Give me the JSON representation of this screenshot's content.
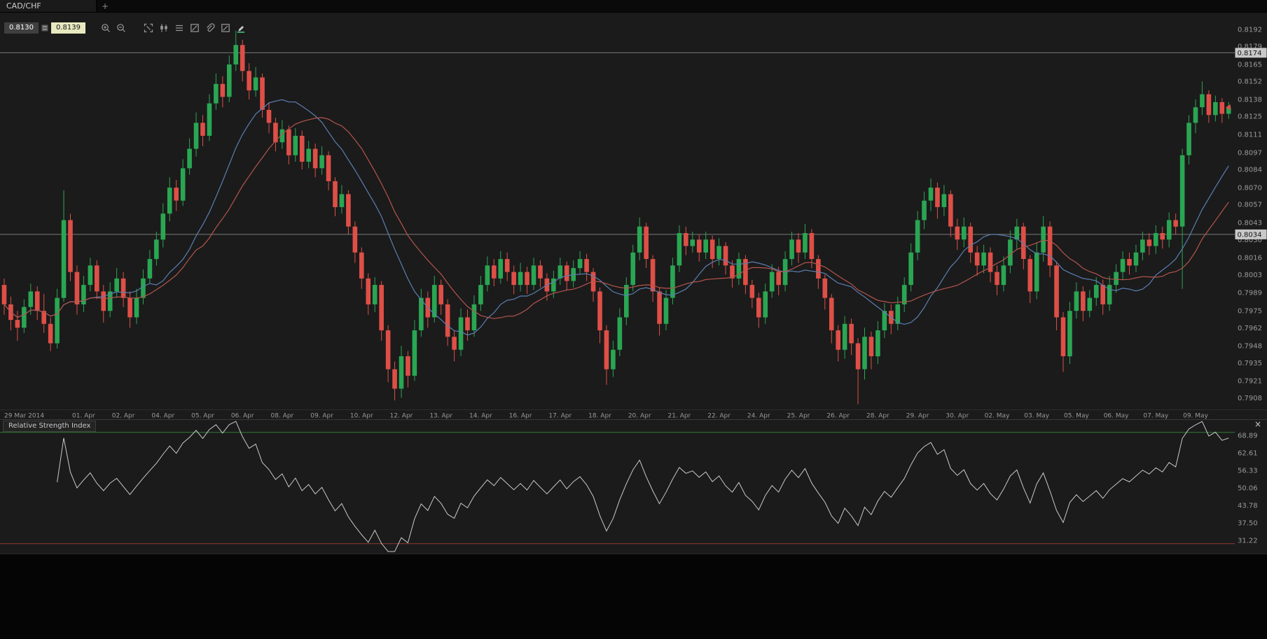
{
  "window": {
    "tab_title": "CAD/CHF",
    "add_tab_label": "+"
  },
  "quote_panel": {
    "sell_price": "0.8130",
    "buy_price": "0.8139"
  },
  "toolbar": {
    "icons": [
      "zoom-in",
      "zoom-out",
      "fit-chart",
      "chart-type",
      "indicator-list",
      "chart-settings",
      "attach",
      "draw",
      "marker"
    ]
  },
  "colors": {
    "background": "#1b1b1b",
    "bull": "#2aa653",
    "bear": "#de4f47",
    "hline": "#7a7a7a",
    "badge_bg": "#c9c9c9",
    "badge_text": "#141414",
    "axis_text": "#9a9a9a",
    "rsi_line": "#c9c9c9",
    "overbought": "#2e7d39",
    "oversold": "#8e3a32",
    "marker": "#d94f43"
  },
  "chart_data": {
    "type": "candlestick",
    "symbol": "CAD/CHF",
    "price_scale": {
      "min": 0.7899,
      "max": 0.8205
    },
    "price_ticks": [
      "0.8192",
      "0.8179",
      "0.8165",
      "0.8152",
      "0.8138",
      "0.8125",
      "0.8111",
      "0.8097",
      "0.8084",
      "0.8070",
      "0.8057",
      "0.8043",
      "0.8030",
      "0.8016",
      "0.8003",
      "0.7989",
      "0.7975",
      "0.7962",
      "0.7948",
      "0.7935",
      "0.7921",
      "0.7908"
    ],
    "hlines": [
      {
        "price": 0.8174,
        "label": "0.8174"
      },
      {
        "price": 0.8034,
        "label": "0.8034"
      }
    ],
    "last_price": 0.8132,
    "date_labels": [
      "29 Mar 2014",
      "01. Apr",
      "02. Apr",
      "04. Apr",
      "05. Apr",
      "06. Apr",
      "08. Apr",
      "09. Apr",
      "10. Apr",
      "12. Apr",
      "13. Apr",
      "14. Apr",
      "16. Apr",
      "17. Apr",
      "18. Apr",
      "20. Apr",
      "21. Apr",
      "22. Apr",
      "24. Apr",
      "25. Apr",
      "26. Apr",
      "28. Apr",
      "29. Apr",
      "30. Apr",
      "02. May",
      "03. May",
      "05. May",
      "06. May",
      "07. May",
      "09. May"
    ],
    "indicators": {
      "ma_fast": {
        "type": "sma",
        "period": 14,
        "color": "#5a7fb2"
      },
      "ma_slow": {
        "type": "sma",
        "period": 21,
        "color": "#b4544c"
      }
    },
    "rsi_panel": {
      "title": "Relative Strength Index",
      "close_label": "×",
      "period": 14,
      "overbought": 70,
      "oversold": 30,
      "scale": {
        "min": 26.4,
        "max": 74.7
      },
      "axis_labels": [
        "68.89",
        "62.61",
        "56.33",
        "50.06",
        "43.78",
        "37.50",
        "31.22"
      ]
    },
    "candles": [
      [
        0.7995,
        0.8,
        0.7972,
        0.798
      ],
      [
        0.798,
        0.7986,
        0.796,
        0.7968
      ],
      [
        0.7968,
        0.7975,
        0.7952,
        0.7962
      ],
      [
        0.7962,
        0.7984,
        0.7958,
        0.7978
      ],
      [
        0.7978,
        0.7996,
        0.7972,
        0.799
      ],
      [
        0.799,
        0.7994,
        0.7968,
        0.7975
      ],
      [
        0.7975,
        0.7988,
        0.7958,
        0.7965
      ],
      [
        0.7965,
        0.797,
        0.7944,
        0.795
      ],
      [
        0.795,
        0.7992,
        0.7946,
        0.7985
      ],
      [
        0.7985,
        0.8068,
        0.7982,
        0.8045
      ],
      [
        0.8045,
        0.805,
        0.7998,
        0.8005
      ],
      [
        0.8005,
        0.801,
        0.7972,
        0.798
      ],
      [
        0.798,
        0.8002,
        0.7974,
        0.7995
      ],
      [
        0.7995,
        0.8016,
        0.799,
        0.801
      ],
      [
        0.801,
        0.8014,
        0.7984,
        0.799
      ],
      [
        0.799,
        0.7995,
        0.7966,
        0.7975
      ],
      [
        0.7975,
        0.7997,
        0.797,
        0.799
      ],
      [
        0.799,
        0.8008,
        0.7985,
        0.8
      ],
      [
        0.8,
        0.8005,
        0.7978,
        0.7985
      ],
      [
        0.7985,
        0.799,
        0.7962,
        0.797
      ],
      [
        0.797,
        0.7992,
        0.7965,
        0.7985
      ],
      [
        0.7985,
        0.8007,
        0.798,
        0.8
      ],
      [
        0.8,
        0.8022,
        0.7996,
        0.8015
      ],
      [
        0.8015,
        0.8036,
        0.801,
        0.803
      ],
      [
        0.803,
        0.8058,
        0.8024,
        0.805
      ],
      [
        0.805,
        0.8078,
        0.8044,
        0.807
      ],
      [
        0.807,
        0.8076,
        0.8052,
        0.806
      ],
      [
        0.806,
        0.8092,
        0.8056,
        0.8085
      ],
      [
        0.8085,
        0.8108,
        0.808,
        0.81
      ],
      [
        0.81,
        0.8128,
        0.8094,
        0.812
      ],
      [
        0.812,
        0.8126,
        0.8102,
        0.811
      ],
      [
        0.811,
        0.8142,
        0.8106,
        0.8135
      ],
      [
        0.8135,
        0.8158,
        0.813,
        0.815
      ],
      [
        0.815,
        0.8156,
        0.8132,
        0.814
      ],
      [
        0.814,
        0.8172,
        0.8136,
        0.8165
      ],
      [
        0.8165,
        0.8191,
        0.816,
        0.818
      ],
      [
        0.818,
        0.8184,
        0.8152,
        0.816
      ],
      [
        0.816,
        0.8166,
        0.8138,
        0.8145
      ],
      [
        0.8145,
        0.8163,
        0.814,
        0.8155
      ],
      [
        0.8155,
        0.8158,
        0.8124,
        0.813
      ],
      [
        0.813,
        0.8136,
        0.8112,
        0.812
      ],
      [
        0.812,
        0.8124,
        0.8098,
        0.8105
      ],
      [
        0.8105,
        0.8122,
        0.81,
        0.8115
      ],
      [
        0.8115,
        0.8118,
        0.8088,
        0.8095
      ],
      [
        0.8095,
        0.8116,
        0.809,
        0.811
      ],
      [
        0.811,
        0.8114,
        0.8084,
        0.809
      ],
      [
        0.809,
        0.8106,
        0.8085,
        0.81
      ],
      [
        0.81,
        0.8104,
        0.8078,
        0.8085
      ],
      [
        0.8085,
        0.8102,
        0.808,
        0.8095
      ],
      [
        0.8095,
        0.8098,
        0.8068,
        0.8075
      ],
      [
        0.8075,
        0.8078,
        0.8048,
        0.8055
      ],
      [
        0.8055,
        0.8072,
        0.805,
        0.8065
      ],
      [
        0.8065,
        0.8068,
        0.8034,
        0.804
      ],
      [
        0.804,
        0.8044,
        0.8012,
        0.802
      ],
      [
        0.802,
        0.8024,
        0.7992,
        0.8
      ],
      [
        0.8,
        0.8004,
        0.7972,
        0.798
      ],
      [
        0.798,
        0.8001,
        0.7974,
        0.7995
      ],
      [
        0.7995,
        0.7998,
        0.7952,
        0.796
      ],
      [
        0.796,
        0.7964,
        0.792,
        0.793
      ],
      [
        0.793,
        0.7936,
        0.7906,
        0.7915
      ],
      [
        0.7915,
        0.7948,
        0.7908,
        0.794
      ],
      [
        0.794,
        0.7944,
        0.7916,
        0.7925
      ],
      [
        0.7925,
        0.7968,
        0.7921,
        0.796
      ],
      [
        0.796,
        0.7992,
        0.7955,
        0.7985
      ],
      [
        0.7985,
        0.799,
        0.7962,
        0.797
      ],
      [
        0.797,
        0.8002,
        0.7966,
        0.7995
      ],
      [
        0.7995,
        0.7999,
        0.7972,
        0.798
      ],
      [
        0.798,
        0.7984,
        0.7948,
        0.7955
      ],
      [
        0.7955,
        0.796,
        0.7936,
        0.7945
      ],
      [
        0.7945,
        0.7977,
        0.794,
        0.797
      ],
      [
        0.797,
        0.7976,
        0.7952,
        0.796
      ],
      [
        0.796,
        0.7987,
        0.7955,
        0.798
      ],
      [
        0.798,
        0.8002,
        0.7975,
        0.7995
      ],
      [
        0.7995,
        0.8017,
        0.799,
        0.801
      ],
      [
        0.801,
        0.8015,
        0.7994,
        0.8
      ],
      [
        0.8,
        0.8021,
        0.7996,
        0.8015
      ],
      [
        0.8015,
        0.802,
        0.7998,
        0.8005
      ],
      [
        0.8005,
        0.801,
        0.7988,
        0.7995
      ],
      [
        0.7995,
        0.8012,
        0.799,
        0.8005
      ],
      [
        0.8005,
        0.8009,
        0.7988,
        0.7995
      ],
      [
        0.7995,
        0.8016,
        0.7991,
        0.801
      ],
      [
        0.801,
        0.8014,
        0.7993,
        0.8
      ],
      [
        0.8,
        0.8004,
        0.7983,
        0.799
      ],
      [
        0.799,
        0.8006,
        0.7985,
        0.8
      ],
      [
        0.8,
        0.8016,
        0.7995,
        0.801
      ],
      [
        0.801,
        0.8013,
        0.7991,
        0.7998
      ],
      [
        0.7998,
        0.8014,
        0.7993,
        0.8008
      ],
      [
        0.8008,
        0.8021,
        0.8003,
        0.8015
      ],
      [
        0.8015,
        0.8019,
        0.7998,
        0.8005
      ],
      [
        0.8005,
        0.8008,
        0.7982,
        0.799
      ],
      [
        0.799,
        0.7993,
        0.795,
        0.796
      ],
      [
        0.796,
        0.7964,
        0.7918,
        0.793
      ],
      [
        0.793,
        0.7952,
        0.7924,
        0.7945
      ],
      [
        0.7945,
        0.7977,
        0.794,
        0.797
      ],
      [
        0.797,
        0.8001,
        0.7964,
        0.7995
      ],
      [
        0.7995,
        0.8026,
        0.799,
        0.802
      ],
      [
        0.802,
        0.8047,
        0.8014,
        0.804
      ],
      [
        0.804,
        0.8043,
        0.8008,
        0.8015
      ],
      [
        0.8015,
        0.8018,
        0.7982,
        0.799
      ],
      [
        0.799,
        0.7993,
        0.7956,
        0.7965
      ],
      [
        0.7965,
        0.7991,
        0.796,
        0.7985
      ],
      [
        0.7985,
        0.8016,
        0.798,
        0.801
      ],
      [
        0.801,
        0.8041,
        0.8005,
        0.8035
      ],
      [
        0.8035,
        0.804,
        0.8018,
        0.8025
      ],
      [
        0.8025,
        0.8036,
        0.802,
        0.803
      ],
      [
        0.803,
        0.8034,
        0.8013,
        0.802
      ],
      [
        0.802,
        0.8036,
        0.8015,
        0.803
      ],
      [
        0.803,
        0.8033,
        0.8008,
        0.8015
      ],
      [
        0.8015,
        0.8031,
        0.801,
        0.8025
      ],
      [
        0.8025,
        0.8028,
        0.8003,
        0.801
      ],
      [
        0.801,
        0.8014,
        0.7993,
        0.8
      ],
      [
        0.8,
        0.802,
        0.7995,
        0.8015
      ],
      [
        0.8015,
        0.8018,
        0.7988,
        0.7995
      ],
      [
        0.7995,
        0.7999,
        0.7977,
        0.7985
      ],
      [
        0.7985,
        0.7989,
        0.7962,
        0.797
      ],
      [
        0.797,
        0.7996,
        0.7965,
        0.799
      ],
      [
        0.799,
        0.8011,
        0.7985,
        0.8005
      ],
      [
        0.8005,
        0.8009,
        0.7987,
        0.7995
      ],
      [
        0.7995,
        0.8021,
        0.799,
        0.8015
      ],
      [
        0.8015,
        0.8036,
        0.801,
        0.803
      ],
      [
        0.803,
        0.8035,
        0.8012,
        0.802
      ],
      [
        0.802,
        0.8042,
        0.8015,
        0.8035
      ],
      [
        0.8035,
        0.8038,
        0.8008,
        0.8015
      ],
      [
        0.8015,
        0.8018,
        0.7992,
        0.8
      ],
      [
        0.8,
        0.8003,
        0.7976,
        0.7985
      ],
      [
        0.7985,
        0.7988,
        0.795,
        0.796
      ],
      [
        0.796,
        0.7964,
        0.7936,
        0.7945
      ],
      [
        0.7945,
        0.7971,
        0.7938,
        0.7965
      ],
      [
        0.7965,
        0.7969,
        0.7941,
        0.795
      ],
      [
        0.795,
        0.7954,
        0.7903,
        0.793
      ],
      [
        0.793,
        0.7962,
        0.7922,
        0.7955
      ],
      [
        0.7955,
        0.7959,
        0.793,
        0.794
      ],
      [
        0.794,
        0.7967,
        0.7934,
        0.796
      ],
      [
        0.796,
        0.7981,
        0.7954,
        0.7975
      ],
      [
        0.7975,
        0.798,
        0.7957,
        0.7965
      ],
      [
        0.7965,
        0.7986,
        0.796,
        0.798
      ],
      [
        0.798,
        0.8001,
        0.7974,
        0.7995
      ],
      [
        0.7995,
        0.8027,
        0.799,
        0.802
      ],
      [
        0.802,
        0.8052,
        0.8014,
        0.8045
      ],
      [
        0.8045,
        0.8067,
        0.8038,
        0.806
      ],
      [
        0.806,
        0.8077,
        0.8052,
        0.807
      ],
      [
        0.807,
        0.8074,
        0.8046,
        0.8055
      ],
      [
        0.8055,
        0.8072,
        0.8048,
        0.8065
      ],
      [
        0.8065,
        0.8068,
        0.8032,
        0.804
      ],
      [
        0.804,
        0.8046,
        0.8022,
        0.803
      ],
      [
        0.803,
        0.8047,
        0.8024,
        0.804
      ],
      [
        0.804,
        0.8043,
        0.8012,
        0.802
      ],
      [
        0.802,
        0.8025,
        0.8002,
        0.801
      ],
      [
        0.801,
        0.8026,
        0.8004,
        0.802
      ],
      [
        0.802,
        0.8024,
        0.7997,
        0.8005
      ],
      [
        0.8005,
        0.801,
        0.7987,
        0.7995
      ],
      [
        0.7995,
        0.8017,
        0.799,
        0.801
      ],
      [
        0.801,
        0.8037,
        0.8004,
        0.803
      ],
      [
        0.803,
        0.8046,
        0.8022,
        0.804
      ],
      [
        0.804,
        0.8043,
        0.8007,
        0.8015
      ],
      [
        0.8015,
        0.8018,
        0.7981,
        0.799
      ],
      [
        0.799,
        0.8028,
        0.7984,
        0.802
      ],
      [
        0.802,
        0.8048,
        0.8013,
        0.804
      ],
      [
        0.804,
        0.8044,
        0.8001,
        0.801
      ],
      [
        0.801,
        0.8013,
        0.796,
        0.797
      ],
      [
        0.797,
        0.7974,
        0.7928,
        0.794
      ],
      [
        0.794,
        0.7982,
        0.7934,
        0.7975
      ],
      [
        0.7975,
        0.7997,
        0.7969,
        0.799
      ],
      [
        0.799,
        0.7994,
        0.7967,
        0.7975
      ],
      [
        0.7975,
        0.7991,
        0.797,
        0.7985
      ],
      [
        0.7985,
        0.8001,
        0.7979,
        0.7995
      ],
      [
        0.7995,
        0.7999,
        0.7972,
        0.798
      ],
      [
        0.798,
        0.8002,
        0.7975,
        0.7995
      ],
      [
        0.7995,
        0.8011,
        0.7989,
        0.8005
      ],
      [
        0.8005,
        0.8021,
        0.7999,
        0.8015
      ],
      [
        0.8015,
        0.802,
        0.8003,
        0.801
      ],
      [
        0.801,
        0.8026,
        0.8005,
        0.802
      ],
      [
        0.802,
        0.8036,
        0.8014,
        0.803
      ],
      [
        0.803,
        0.8035,
        0.8018,
        0.8025
      ],
      [
        0.8025,
        0.8041,
        0.8019,
        0.8035
      ],
      [
        0.8035,
        0.804,
        0.8023,
        0.803
      ],
      [
        0.803,
        0.8051,
        0.8024,
        0.8045
      ],
      [
        0.8045,
        0.805,
        0.8034,
        0.804
      ],
      [
        0.804,
        0.81,
        0.7992,
        0.8095
      ],
      [
        0.8095,
        0.8126,
        0.8088,
        0.812
      ],
      [
        0.812,
        0.8138,
        0.8112,
        0.8132
      ],
      [
        0.8132,
        0.8152,
        0.8126,
        0.8142
      ],
      [
        0.8142,
        0.8145,
        0.812,
        0.8126
      ],
      [
        0.8126,
        0.8141,
        0.8121,
        0.8136
      ],
      [
        0.8136,
        0.8139,
        0.812,
        0.8127
      ],
      [
        0.8127,
        0.8136,
        0.8123,
        0.8132
      ]
    ]
  }
}
